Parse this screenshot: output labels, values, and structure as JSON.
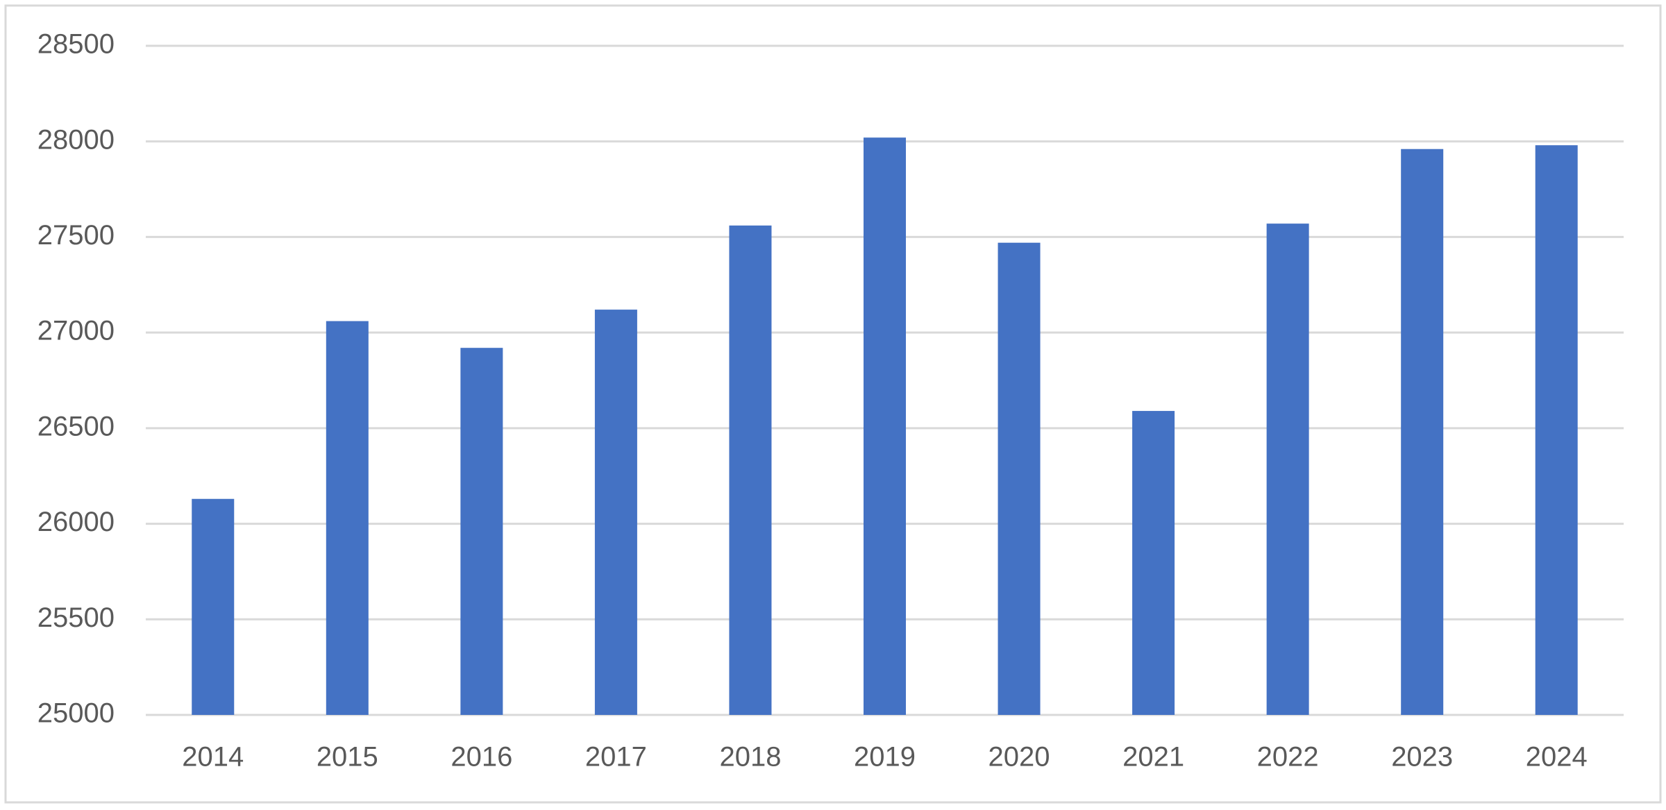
{
  "chart_data": {
    "type": "bar",
    "categories": [
      "2014",
      "2015",
      "2016",
      "2017",
      "2018",
      "2019",
      "2020",
      "2021",
      "2022",
      "2023",
      "2024"
    ],
    "values": [
      26130,
      27060,
      26920,
      27120,
      27560,
      28020,
      27470,
      26590,
      27570,
      27960,
      27980
    ],
    "color": "#4472c4",
    "ylim": [
      25000,
      28500
    ],
    "yticks": [
      25000,
      25500,
      26000,
      26500,
      27000,
      27500,
      28000,
      28500
    ],
    "grid": true
  }
}
